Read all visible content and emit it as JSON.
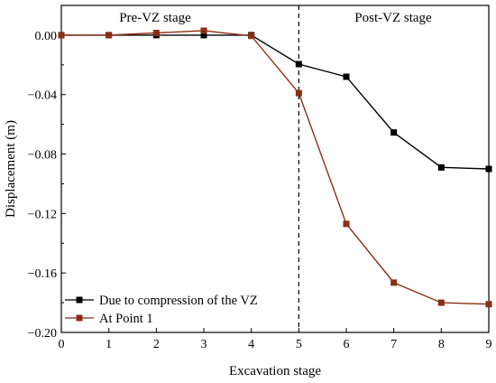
{
  "chart_data": {
    "type": "line",
    "xlabel": "Excavation stage",
    "ylabel": "Displacement (m)",
    "xlim": [
      0,
      9
    ],
    "ylim": [
      -0.2,
      0.02
    ],
    "x_ticks": [
      0,
      1,
      2,
      3,
      4,
      5,
      6,
      7,
      8,
      9
    ],
    "y_ticks": [
      0.0,
      -0.04,
      -0.08,
      -0.12,
      -0.16,
      -0.2
    ],
    "y_tick_labels": [
      "0.00",
      "−0.04",
      "−0.08",
      "−0.12",
      "−0.16",
      "−0.20"
    ],
    "x": [
      0,
      1,
      2,
      3,
      4,
      5,
      6,
      7,
      8,
      9
    ],
    "series": [
      {
        "name": "Due to compression of the VZ",
        "color": "#000000",
        "marker": "square",
        "values": [
          0.0,
          0.0,
          0.0,
          0.0,
          0.0,
          -0.0195,
          -0.028,
          -0.0655,
          -0.089,
          -0.09
        ]
      },
      {
        "name": "At Point 1",
        "color": "#8B2E16",
        "marker": "square",
        "values": [
          0.0,
          0.0,
          0.0015,
          0.003,
          -0.0005,
          -0.039,
          -0.127,
          -0.1665,
          -0.18,
          -0.181
        ]
      }
    ],
    "divider": {
      "x": 5,
      "style": "dashed"
    },
    "annotations": [
      {
        "text": "Pre-VZ stage",
        "region": "left"
      },
      {
        "text": "Post-VZ stage",
        "region": "right"
      }
    ],
    "legend": "bottom-left",
    "grid": false
  }
}
